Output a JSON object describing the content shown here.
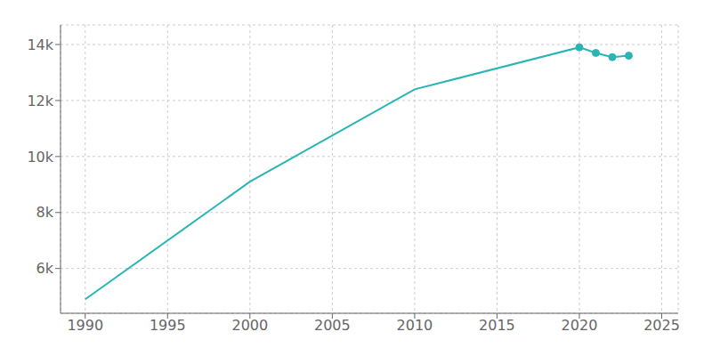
{
  "chart_data": {
    "type": "line",
    "x": [
      1990,
      2000,
      2010,
      2020,
      2021,
      2022,
      2023
    ],
    "values": [
      4900,
      9100,
      12400,
      13900,
      13700,
      13550,
      13600
    ],
    "color": "#2ab5b5",
    "marker": "o",
    "marker_x": [
      2020,
      2021,
      2022,
      2023
    ],
    "xlim": [
      1988.5,
      2026
    ],
    "xticks": [
      1990,
      1995,
      2000,
      2005,
      2010,
      2015,
      2020,
      2025
    ],
    "ylim": [
      4400,
      14700
    ],
    "yticks": [
      {
        "value": 6000,
        "label": "6k"
      },
      {
        "value": 8000,
        "label": "8k"
      },
      {
        "value": 10000,
        "label": "10k"
      },
      {
        "value": 12000,
        "label": "12k"
      },
      {
        "value": 14000,
        "label": "14k"
      }
    ],
    "grid": true
  }
}
